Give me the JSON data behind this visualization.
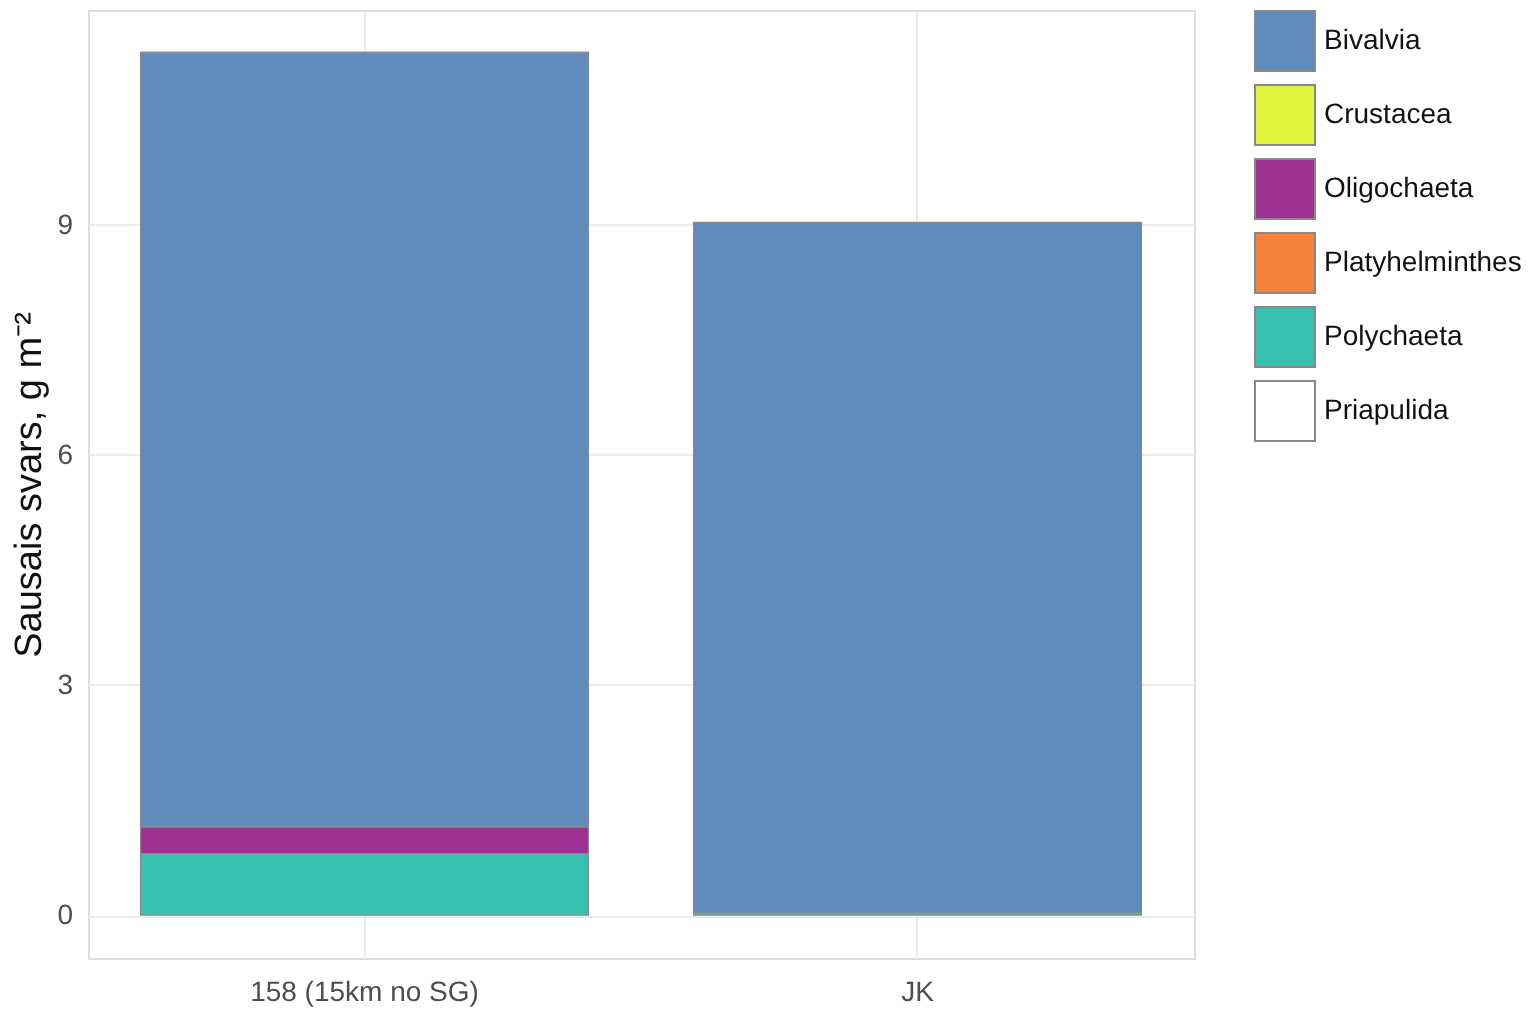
{
  "chart_data": {
    "type": "bar",
    "stacked": true,
    "ylabel": "Sausais svars, g m⁻²",
    "categories": [
      "158 (15km no SG)",
      "JK"
    ],
    "series": [
      {
        "name": "Priapulida",
        "color": "#ffffff",
        "values": [
          0,
          0
        ]
      },
      {
        "name": "Polychaeta",
        "color": "#35c0b0",
        "values": [
          0.8,
          0.03
        ]
      },
      {
        "name": "Platyhelminthes",
        "color": "#f5823a",
        "values": [
          0,
          0
        ]
      },
      {
        "name": "Oligochaeta",
        "color": "#9c3192",
        "values": [
          0.35,
          0
        ]
      },
      {
        "name": "Crustacea",
        "color": "#e0f53a",
        "values": [
          0,
          0
        ]
      },
      {
        "name": "Bivalvia",
        "color": "#5f8bbd",
        "values": [
          10.1,
          9.0
        ]
      }
    ],
    "ylim": [
      -0.56,
      11.8
    ],
    "yticks": [
      0,
      3,
      6,
      9
    ],
    "grid": true,
    "legend": "right"
  }
}
